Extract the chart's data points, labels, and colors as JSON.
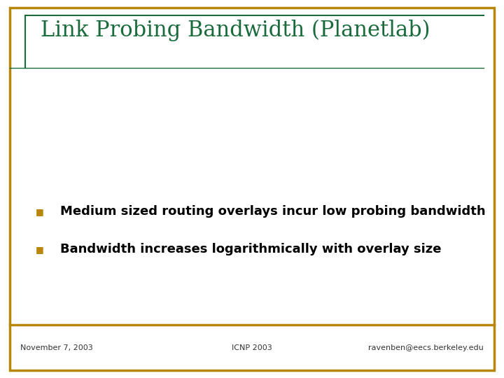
{
  "title": "Link Probing Bandwidth (Planetlab)",
  "title_color": "#1a6b3c",
  "title_fontsize": 22,
  "bullet_points": [
    "Medium sized routing overlays incur low probing bandwidth",
    "Bandwidth increases logarithmically with overlay size"
  ],
  "bullet_color": "#000000",
  "bullet_marker_color": "#b8860b",
  "bullet_fontsize": 13,
  "footer_left": "November 7, 2003",
  "footer_center": "ICNP 2003",
  "footer_right": "ravenben@eecs.berkeley.edu",
  "footer_fontsize": 8,
  "footer_color": "#333333",
  "background_color": "#ffffff",
  "border_color_outer": "#b8860b",
  "border_color_inner": "#1a6b3c"
}
